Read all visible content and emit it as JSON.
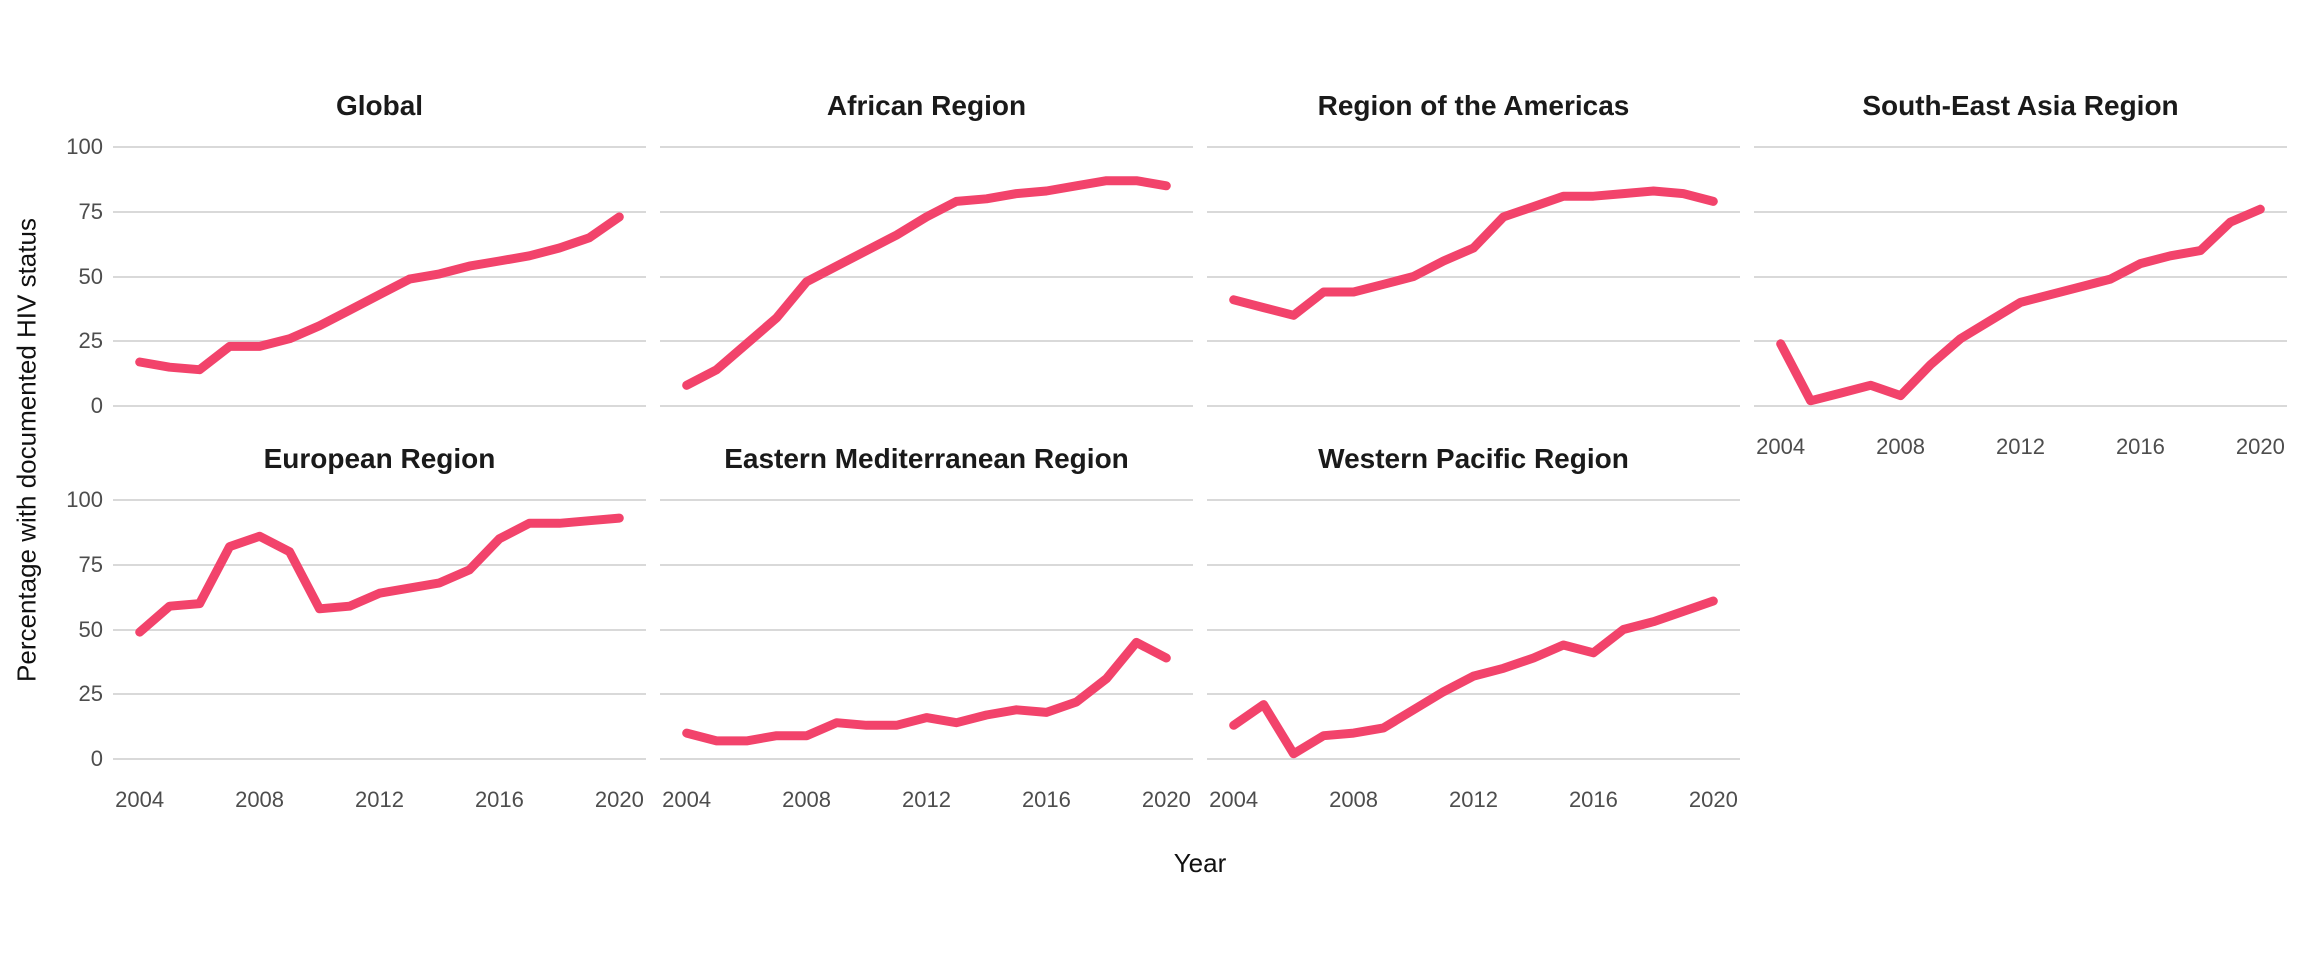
{
  "figure": {
    "line_color": "#f2436b",
    "grid_color": "#d9d9d9",
    "title_color": "#1a1a1a",
    "axis_text_color": "#4d4d4d"
  },
  "chart_data": {
    "type": "line",
    "x": [
      2004,
      2005,
      2006,
      2007,
      2008,
      2009,
      2010,
      2011,
      2012,
      2013,
      2014,
      2015,
      2016,
      2017,
      2018,
      2019,
      2020
    ],
    "x_ticks": [
      2004,
      2008,
      2012,
      2016,
      2020
    ],
    "y_ticks": [
      0,
      25,
      50,
      75,
      100
    ],
    "ylim": [
      0,
      100
    ],
    "xlabel": "Year",
    "ylabel": "Percentage with documented HIV status",
    "grid": "horizontal-major-only",
    "legend": "none",
    "facet_layout": {
      "columns": 4,
      "rows": 2
    },
    "series": [
      {
        "name": "Global",
        "values": [
          17,
          15,
          14,
          23,
          23,
          26,
          31,
          37,
          43,
          49,
          51,
          54,
          56,
          58,
          61,
          65,
          73
        ]
      },
      {
        "name": "African Region",
        "values": [
          8,
          14,
          24,
          34,
          48,
          54,
          60,
          66,
          73,
          79,
          80,
          82,
          83,
          85,
          87,
          87,
          85
        ]
      },
      {
        "name": "Region of the Americas",
        "values": [
          41,
          38,
          35,
          44,
          44,
          47,
          50,
          56,
          61,
          73,
          77,
          81,
          81,
          82,
          83,
          82,
          79
        ]
      },
      {
        "name": "South-East Asia Region",
        "values": [
          24,
          2,
          5,
          8,
          4,
          16,
          26,
          33,
          40,
          43,
          46,
          49,
          55,
          58,
          60,
          71,
          76
        ]
      },
      {
        "name": "European Region",
        "values": [
          49,
          59,
          60,
          82,
          86,
          80,
          58,
          59,
          64,
          66,
          68,
          73,
          85,
          91,
          91,
          92,
          93
        ]
      },
      {
        "name": "Eastern Mediterranean Region",
        "values": [
          10,
          7,
          7,
          9,
          9,
          14,
          13,
          13,
          16,
          14,
          17,
          19,
          18,
          22,
          31,
          45,
          39
        ]
      },
      {
        "name": "Western Pacific Region",
        "values": [
          13,
          21,
          2,
          9,
          10,
          12,
          19,
          26,
          32,
          35,
          39,
          44,
          41,
          50,
          53,
          57,
          61
        ]
      }
    ]
  }
}
